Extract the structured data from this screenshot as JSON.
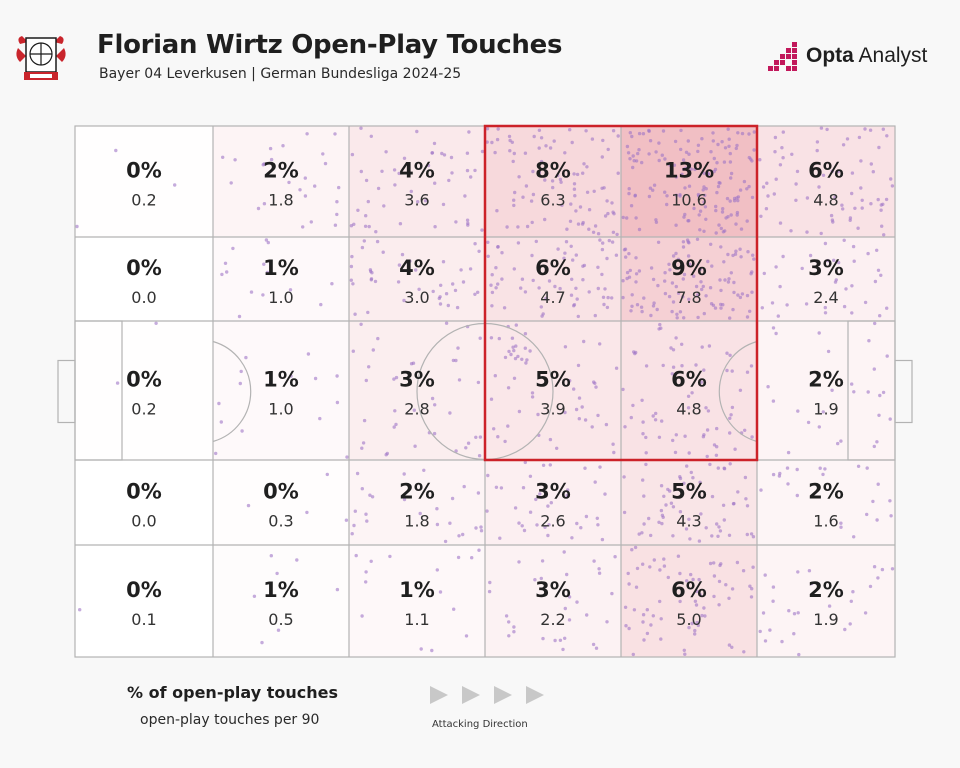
{
  "header": {
    "title": "Florian Wirtz Open-Play Touches",
    "subtitle": "Bayer 04 Leverkusen | German Bundesliga 2024-25",
    "brand_bold": "Opta",
    "brand_rest": " Analyst",
    "badge_icon": "bayer-leverkusen-crest-icon"
  },
  "legend": {
    "title": "% of open-play touches",
    "subtitle": "open-play touches per 90",
    "direction_label": "Attacking Direction",
    "arrow_icon": "play-triangle-icon"
  },
  "colors": {
    "highlight": "#cc2229",
    "heat": "#e68a94",
    "dots": "#9e75c7",
    "lines": "#b0b0b0"
  },
  "chart_data": {
    "type": "heatmap",
    "columns": 6,
    "rows": 5,
    "cells": [
      [
        {
          "pct": "0%",
          "p90": "0.2"
        },
        {
          "pct": "2%",
          "p90": "1.8"
        },
        {
          "pct": "4%",
          "p90": "3.6"
        },
        {
          "pct": "8%",
          "p90": "6.3"
        },
        {
          "pct": "13%",
          "p90": "10.6"
        },
        {
          "pct": "6%",
          "p90": "4.8"
        }
      ],
      [
        {
          "pct": "0%",
          "p90": "0.0"
        },
        {
          "pct": "1%",
          "p90": "1.0"
        },
        {
          "pct": "4%",
          "p90": "3.0"
        },
        {
          "pct": "6%",
          "p90": "4.7"
        },
        {
          "pct": "9%",
          "p90": "7.8"
        },
        {
          "pct": "3%",
          "p90": "2.4"
        }
      ],
      [
        {
          "pct": "0%",
          "p90": "0.2"
        },
        {
          "pct": "1%",
          "p90": "1.0"
        },
        {
          "pct": "3%",
          "p90": "2.8"
        },
        {
          "pct": "5%",
          "p90": "3.9"
        },
        {
          "pct": "6%",
          "p90": "4.8"
        },
        {
          "pct": "2%",
          "p90": "1.9"
        }
      ],
      [
        {
          "pct": "0%",
          "p90": "0.0"
        },
        {
          "pct": "0%",
          "p90": "0.3"
        },
        {
          "pct": "2%",
          "p90": "1.8"
        },
        {
          "pct": "3%",
          "p90": "2.6"
        },
        {
          "pct": "5%",
          "p90": "4.3"
        },
        {
          "pct": "2%",
          "p90": "1.6"
        }
      ],
      [
        {
          "pct": "0%",
          "p90": "0.1"
        },
        {
          "pct": "1%",
          "p90": "0.5"
        },
        {
          "pct": "1%",
          "p90": "1.1"
        },
        {
          "pct": "3%",
          "p90": "2.2"
        },
        {
          "pct": "6%",
          "p90": "5.0"
        },
        {
          "pct": "2%",
          "p90": "1.9"
        }
      ]
    ],
    "highlighted_zone": {
      "columns": [
        4,
        5
      ],
      "rows": [
        1,
        3
      ]
    }
  }
}
